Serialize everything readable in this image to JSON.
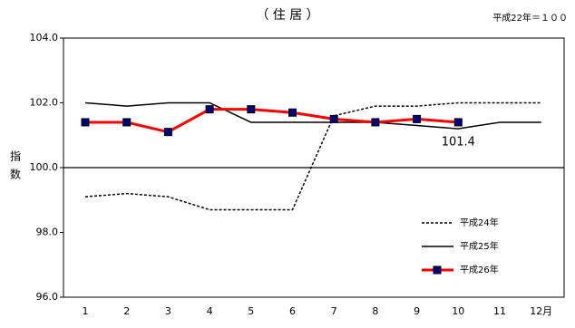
{
  "chart_data": {
    "type": "line",
    "title": "（ 住 居 ）",
    "note": "平成22年＝１００",
    "ylabel": "指数",
    "categories": [
      "1",
      "2",
      "3",
      "4",
      "5",
      "6",
      "7",
      "8",
      "9",
      "10",
      "11",
      "12月"
    ],
    "series": [
      {
        "name": "平成24年",
        "color": "#000000",
        "style": "dashed",
        "values": [
          99.1,
          99.2,
          99.1,
          98.7,
          98.7,
          98.7,
          101.6,
          101.9,
          101.9,
          102.0,
          102.0,
          102.0
        ]
      },
      {
        "name": "平成25年",
        "color": "#000000",
        "style": "solid",
        "values": [
          102.0,
          101.9,
          102.0,
          102.0,
          101.4,
          101.4,
          101.4,
          101.4,
          101.3,
          101.2,
          101.4,
          101.4
        ]
      },
      {
        "name": "平成26年",
        "color": "#ff0000",
        "style": "marker",
        "values": [
          101.4,
          101.4,
          101.1,
          101.8,
          101.8,
          101.7,
          101.5,
          101.4,
          101.5,
          101.4,
          null,
          null
        ],
        "value_labels": [
          null,
          null,
          null,
          null,
          null,
          null,
          null,
          null,
          null,
          "101.4",
          null,
          null
        ]
      }
    ],
    "ylim": [
      96,
      104
    ],
    "yticks": [
      {
        "value": 96,
        "label": "96.0"
      },
      {
        "value": 98,
        "label": "98.0"
      },
      {
        "value": 100,
        "label": "100.0"
      },
      {
        "value": 102,
        "label": "102.0"
      },
      {
        "value": 104,
        "label": "104.0"
      }
    ],
    "reference_line": 100,
    "legend": "lower-right"
  }
}
